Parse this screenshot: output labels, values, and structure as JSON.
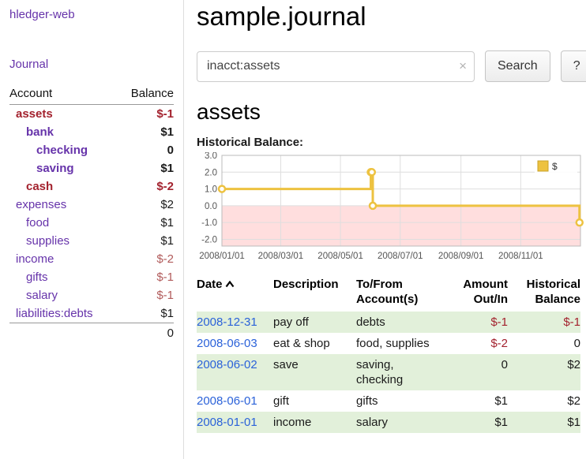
{
  "brand": "hledger-web",
  "sidebar": {
    "journal_link": "Journal",
    "accounts": {
      "header_account": "Account",
      "header_balance": "Balance",
      "rows": [
        {
          "name": "assets",
          "balance": "$-1",
          "indent": 0,
          "name_style": "neg-bold",
          "bal_style": "neg-bold"
        },
        {
          "name": "bank",
          "balance": "$1",
          "indent": 1,
          "name_style": "link-bold",
          "bal_style": "bold"
        },
        {
          "name": "checking",
          "balance": "0",
          "indent": 2,
          "name_style": "link-bold",
          "bal_style": "bold"
        },
        {
          "name": "saving",
          "balance": "$1",
          "indent": 2,
          "name_style": "link-bold",
          "bal_style": "bold"
        },
        {
          "name": "cash",
          "balance": "$-2",
          "indent": 1,
          "name_style": "neg-bold",
          "bal_style": "neg-bold"
        },
        {
          "name": "expenses",
          "balance": "$2",
          "indent": 0,
          "name_style": "link",
          "bal_style": "plain"
        },
        {
          "name": "food",
          "balance": "$1",
          "indent": 1,
          "name_style": "link",
          "bal_style": "plain"
        },
        {
          "name": "supplies",
          "balance": "$1",
          "indent": 1,
          "name_style": "link",
          "bal_style": "plain"
        },
        {
          "name": "income",
          "balance": "$-2",
          "indent": 0,
          "name_style": "link",
          "bal_style": "neg"
        },
        {
          "name": "gifts",
          "balance": "$-1",
          "indent": 1,
          "name_style": "link",
          "bal_style": "neg"
        },
        {
          "name": "salary",
          "balance": "$-1",
          "indent": 1,
          "name_style": "link",
          "bal_style": "neg"
        },
        {
          "name": "liabilities:debts",
          "balance": "$1",
          "indent": 0,
          "name_style": "link",
          "bal_style": "plain"
        }
      ],
      "total": "0"
    }
  },
  "main": {
    "title": "sample.journal",
    "search": {
      "value": "inacct:assets",
      "clear_icon": "×",
      "button_label": "Search",
      "help_label": "?"
    },
    "account_heading": "assets",
    "chart_title": "Historical Balance:"
  },
  "chart_data": {
    "type": "line",
    "title": "Historical Balance:",
    "step": true,
    "grid": true,
    "legend_position": "top-right",
    "series": [
      {
        "name": "$",
        "x": [
          "2008-01-01",
          "2008-06-01",
          "2008-06-02",
          "2008-06-03",
          "2008-12-31"
        ],
        "x_days": [
          0,
          152,
          153,
          154,
          365
        ],
        "values": [
          1,
          2,
          2,
          0,
          -1
        ]
      }
    ],
    "xlim_days": [
      0,
      366
    ],
    "ylim": [
      -2.4,
      3.0
    ],
    "x_tick_days": [
      0,
      60,
      121,
      182,
      244,
      305
    ],
    "x_tick_labels": [
      "2008/01/01",
      "2008/03/01",
      "2008/05/01",
      "2008/07/01",
      "2008/09/01",
      "2008/11/01"
    ],
    "y_ticks": [
      3,
      2,
      1,
      0,
      -1,
      -2
    ],
    "y_tick_labels": [
      "3.0",
      "2.0",
      "1.0",
      "0.0",
      "-1.0",
      "-2.0"
    ],
    "line_color": "#edc240",
    "negative_region_color": "#ffdede"
  },
  "transactions": {
    "headers": {
      "date": "Date",
      "description": "Description",
      "account": "To/From Account(s)",
      "amount": "Amount Out/In",
      "balance": "Historical Balance"
    },
    "rows": [
      {
        "date": "2008-12-31",
        "description": "pay off",
        "account": "debts",
        "amount": "$-1",
        "amount_neg": true,
        "balance": "$-1",
        "balance_neg": true
      },
      {
        "date": "2008-06-03",
        "description": "eat & shop",
        "account": "food, supplies",
        "amount": "$-2",
        "amount_neg": true,
        "balance": "0",
        "balance_neg": false
      },
      {
        "date": "2008-06-02",
        "description": "save",
        "account": "saving, checking",
        "amount": "0",
        "amount_neg": false,
        "balance": "$2",
        "balance_neg": false
      },
      {
        "date": "2008-06-01",
        "description": "gift",
        "account": "gifts",
        "amount": "$1",
        "amount_neg": false,
        "balance": "$2",
        "balance_neg": false
      },
      {
        "date": "2008-01-01",
        "description": "income",
        "account": "salary",
        "amount": "$1",
        "amount_neg": false,
        "balance": "$1",
        "balance_neg": false
      }
    ]
  }
}
